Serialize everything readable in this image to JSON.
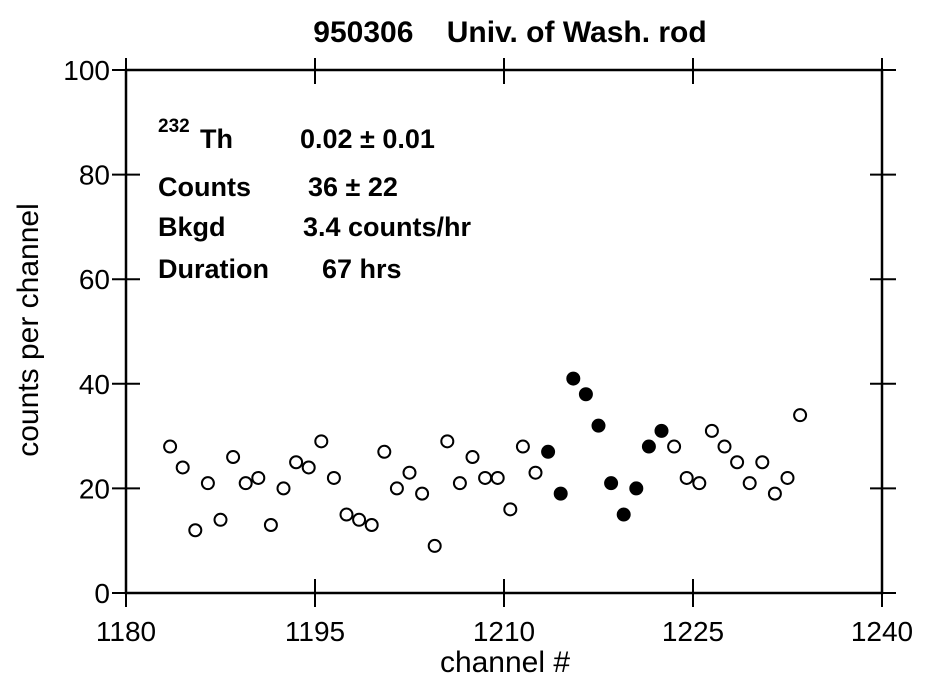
{
  "chart_data": {
    "type": "scatter",
    "title": "950306    Univ. of Wash. rod",
    "xlabel": "channel #",
    "ylabel": "counts per channel",
    "xlim": [
      1180,
      1240
    ],
    "xticks": [
      1180,
      1195,
      1210,
      1225,
      1240
    ],
    "ylim": [
      0,
      100
    ],
    "yticks": [
      0,
      20,
      40,
      60,
      80,
      100
    ],
    "annotations": [
      {
        "sup": "232",
        "label": "Th",
        "value": "0.02 ± 0.01"
      },
      {
        "label": "Counts",
        "value": "36 ± 22"
      },
      {
        "label": "Bkgd",
        "value": "3.4 counts/hr"
      },
      {
        "label": "Duration",
        "value": "67 hrs"
      }
    ],
    "series": [
      {
        "color": "#000000",
        "filled": false,
        "x": [
          1183.5,
          1184.5,
          1185.5,
          1186.5,
          1187.5,
          1188.5,
          1189.5,
          1190.5,
          1191.5,
          1192.5,
          1193.5,
          1194.5,
          1195.5,
          1196.5,
          1197.5,
          1198.5,
          1199.5,
          1200.5,
          1201.5,
          1202.5,
          1203.5,
          1204.5,
          1205.5,
          1206.5,
          1207.5,
          1208.5,
          1209.5,
          1210.5,
          1211.5,
          1212.5,
          1223.5,
          1224.5,
          1225.5,
          1226.5,
          1227.5,
          1228.5,
          1229.5,
          1230.5,
          1231.5,
          1232.5,
          1233.5
        ],
        "values": [
          28,
          24,
          12,
          21,
          14,
          26,
          21,
          22,
          13,
          20,
          25,
          24,
          29,
          22,
          15,
          14,
          13,
          27,
          20,
          23,
          19,
          9,
          29,
          21,
          26,
          22,
          22,
          16,
          28,
          23,
          28,
          22,
          21,
          31,
          28,
          25,
          21,
          25,
          19,
          22,
          34
        ]
      },
      {
        "color": "#000000",
        "filled": true,
        "x": [
          1213.5,
          1214.5,
          1215.5,
          1216.5,
          1217.5,
          1218.5,
          1219.5,
          1220.5,
          1221.5,
          1222.5
        ],
        "values": [
          27,
          19,
          41,
          38,
          32,
          21,
          15,
          20,
          28,
          31
        ]
      }
    ]
  }
}
